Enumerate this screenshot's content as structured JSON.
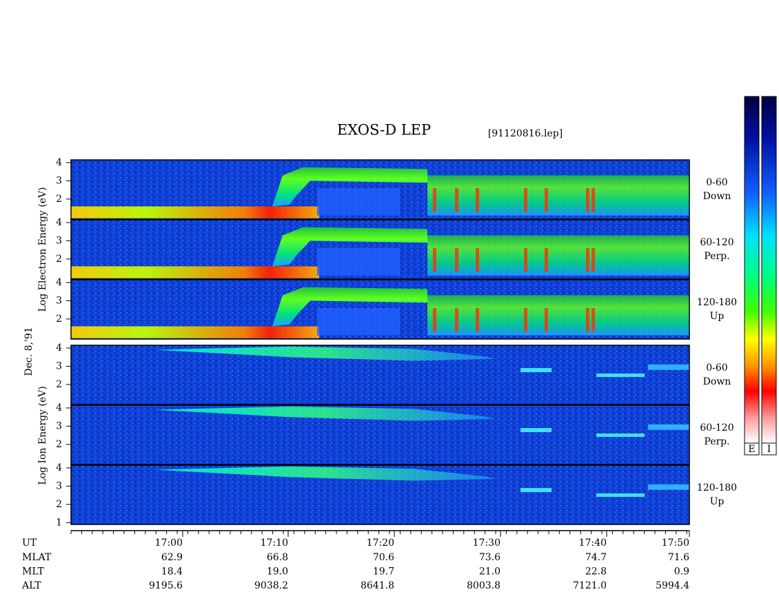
{
  "title": "EXOS-D LEP",
  "file": "[91120816.lep]",
  "date": "Dec. 8,'91",
  "axis_labels": {
    "electron": "Log  Electron  Energy (eV)",
    "ion": "Log  Ion  Energy (eV)"
  },
  "ylim": [
    0.9,
    4.15
  ],
  "panels": [
    {
      "species": "electron",
      "pitch": "0-60",
      "direction": "Down",
      "yticks": [
        2,
        3,
        4
      ]
    },
    {
      "species": "electron",
      "pitch": "60-120",
      "direction": "Perp.",
      "yticks": [
        2,
        3,
        4
      ]
    },
    {
      "species": "electron",
      "pitch": "120-180",
      "direction": "Up",
      "yticks": [
        2,
        3,
        4
      ]
    },
    {
      "species": "ion",
      "pitch": "0-60",
      "direction": "Down",
      "yticks": [
        2,
        3,
        4
      ]
    },
    {
      "species": "ion",
      "pitch": "60-120",
      "direction": "Perp.",
      "yticks": [
        2,
        3,
        4
      ]
    },
    {
      "species": "ion",
      "pitch": "120-180",
      "direction": "Up",
      "yticks": [
        1,
        2,
        3,
        4
      ]
    }
  ],
  "time_axis": {
    "label": "UT",
    "ticks": [
      "17:00",
      "17:10",
      "17:20",
      "17:30",
      "17:40",
      "17:50"
    ]
  },
  "ephemeris": [
    {
      "label": "MLAT",
      "values": [
        "62.9",
        "66.8",
        "70.6",
        "73.6",
        "74.7",
        "71.6"
      ]
    },
    {
      "label": "MLT",
      "values": [
        "18.4",
        "19.0",
        "19.7",
        "21.0",
        "22.8",
        "0.9"
      ]
    },
    {
      "label": "ALT",
      "values": [
        "9195.6",
        "9038.2",
        "8641.8",
        "8003.8",
        "7121.0",
        "5994.4"
      ]
    }
  ],
  "colorbars": [
    "E",
    "I"
  ]
}
